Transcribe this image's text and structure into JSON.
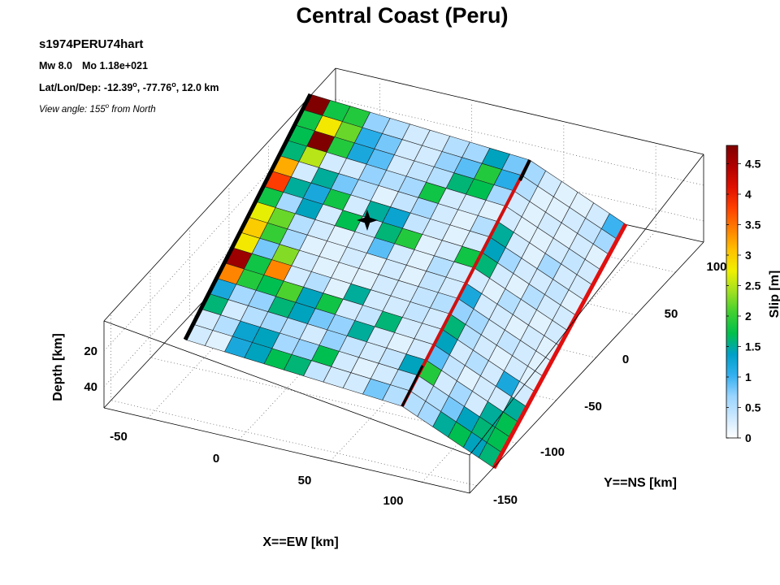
{
  "chart_data": {
    "type": "heatmap",
    "title": "Central Coast (Peru)",
    "event_id": "s1974PERU74hart",
    "magnitude_line": {
      "mw": "Mw 8.0",
      "mo": "Mo 1.18e+021"
    },
    "hypocenter": {
      "prefix": "Lat/Lon/Dep: -12.39",
      "lon": ", -77.76",
      "dep": ", 12.0 km",
      "deg": "o"
    },
    "view_angle": {
      "prefix": "View angle: 155",
      "deg": "o",
      "suffix": " from North"
    },
    "xlabel": "X==EW [km]",
    "ylabel": "Y==NS [km]",
    "zlabel": "Depth [km]",
    "x_ticks": [
      "-50",
      "0",
      "50",
      "100"
    ],
    "y_ticks": [
      "-150",
      "-100",
      "-50",
      "0",
      "50",
      "100"
    ],
    "z_ticks": [
      "20",
      "40"
    ],
    "colorbar": {
      "label": "Slip [m]",
      "range": [
        0,
        4.8
      ],
      "ticks": [
        "0",
        "0.5",
        "1",
        "1.5",
        "2",
        "2.5",
        "3",
        "3.5",
        "4",
        "4.5"
      ],
      "colors": [
        "#ffffff",
        "#cce8ff",
        "#99d4ff",
        "#33b0f0",
        "#00a0c8",
        "#00c04c",
        "#40d030",
        "#a0e020",
        "#f0f000",
        "#ffc000",
        "#ff8000",
        "#ff4000",
        "#e01000",
        "#b00000",
        "#800000"
      ]
    },
    "slip_rows_segment1": [
      [
        4.8,
        1.8,
        1.9,
        0.7,
        0.5,
        0.3,
        0.3,
        0.5,
        0.6,
        1.4,
        0.8
      ],
      [
        1.8,
        2.8,
        2.2,
        1.1,
        0.8,
        0.3,
        0.3,
        0.7,
        0.9,
        1.9,
        1.1
      ],
      [
        1.7,
        4.8,
        1.9,
        1.2,
        0.9,
        0.3,
        0.4,
        0.5,
        1.6,
        1.7,
        0.6
      ],
      [
        1.6,
        2.5,
        0.3,
        0.3,
        0.7,
        0.5,
        0.6,
        1.8,
        0.3,
        0.3,
        0.2
      ],
      [
        3.2,
        0.3,
        1.5,
        0.8,
        0.5,
        0.2,
        0.4,
        0.6,
        0.3,
        0.2,
        0.5
      ],
      [
        3.8,
        1.5,
        1.2,
        1.8,
        0.3,
        1.5,
        1.3,
        0.4,
        0.3,
        0.2,
        0.3
      ],
      [
        1.8,
        0.6,
        1.4,
        0.3,
        1.7,
        0.4,
        1.6,
        1.9,
        0.2,
        0.3,
        1.8
      ],
      [
        2.7,
        2.2,
        0.5,
        0.3,
        0.2,
        0.3,
        0.9,
        0.3,
        0.2,
        0.5,
        0.3
      ],
      [
        3.0,
        2.0,
        0.6,
        0.2,
        0.2,
        0.3,
        0.2,
        0.3,
        0.2,
        0.4,
        0.3
      ],
      [
        2.8,
        0.8,
        2.3,
        0.3,
        0.2,
        0.2,
        0.2,
        0.3,
        0.3,
        0.4,
        0.5
      ],
      [
        4.6,
        1.8,
        3.4,
        0.3,
        0.5,
        0.2,
        1.5,
        0.3,
        0.3,
        0.4,
        0.3
      ],
      [
        3.4,
        1.9,
        1.7,
        2.1,
        1.4,
        1.8,
        0.3,
        0.4,
        1.6,
        0.3,
        0.3
      ],
      [
        1.2,
        0.6,
        0.7,
        1.6,
        1.4,
        0.8,
        0.7,
        1.5,
        0.3,
        0.2,
        0.3
      ],
      [
        1.6,
        0.3,
        0.5,
        0.6,
        0.5,
        0.3,
        0.7,
        0.4,
        0.3,
        0.4,
        1.4
      ],
      [
        0.3,
        0.5,
        1.3,
        1.4,
        0.6,
        0.7,
        1.7,
        0.3,
        0.2,
        0.3,
        0.5
      ],
      [
        0.3,
        0.2,
        1.2,
        1.4,
        1.7,
        1.6,
        0.4,
        0.3,
        0.3,
        0.8,
        0.5
      ]
    ],
    "slip_rows_segment2": [
      [
        0.6,
        0.3,
        0.2,
        0.2,
        0.3,
        1.0
      ],
      [
        0.5,
        0.2,
        0.2,
        0.3,
        0.4,
        0.6
      ],
      [
        0.3,
        0.2,
        0.3,
        0.2,
        0.3,
        0.2
      ],
      [
        0.3,
        0.2,
        0.2,
        0.3,
        0.4,
        0.3
      ],
      [
        1.5,
        0.3,
        0.2,
        0.6,
        0.3,
        0.3
      ],
      [
        1.4,
        0.6,
        0.3,
        0.3,
        0.4,
        0.2
      ],
      [
        1.6,
        0.3,
        0.2,
        0.5,
        0.3,
        0.3
      ],
      [
        0.3,
        0.2,
        0.5,
        0.3,
        0.2,
        0.3
      ],
      [
        1.2,
        0.3,
        0.3,
        0.2,
        0.3,
        0.2
      ],
      [
        0.7,
        0.6,
        0.3,
        0.4,
        0.3,
        0.2
      ],
      [
        1.6,
        0.5,
        0.3,
        0.2,
        0.3,
        0.2
      ],
      [
        1.4,
        0.3,
        0.5,
        0.3,
        1.2,
        0.3
      ],
      [
        0.9,
        0.4,
        0.2,
        0.3,
        0.3,
        1.5
      ],
      [
        1.9,
        0.3,
        0.6,
        0.3,
        1.5,
        1.7
      ],
      [
        0.4,
        0.5,
        0.8,
        1.4,
        1.6,
        1.7
      ],
      [
        0.5,
        0.6,
        1.5,
        1.7,
        1.4,
        1.6
      ]
    ]
  }
}
